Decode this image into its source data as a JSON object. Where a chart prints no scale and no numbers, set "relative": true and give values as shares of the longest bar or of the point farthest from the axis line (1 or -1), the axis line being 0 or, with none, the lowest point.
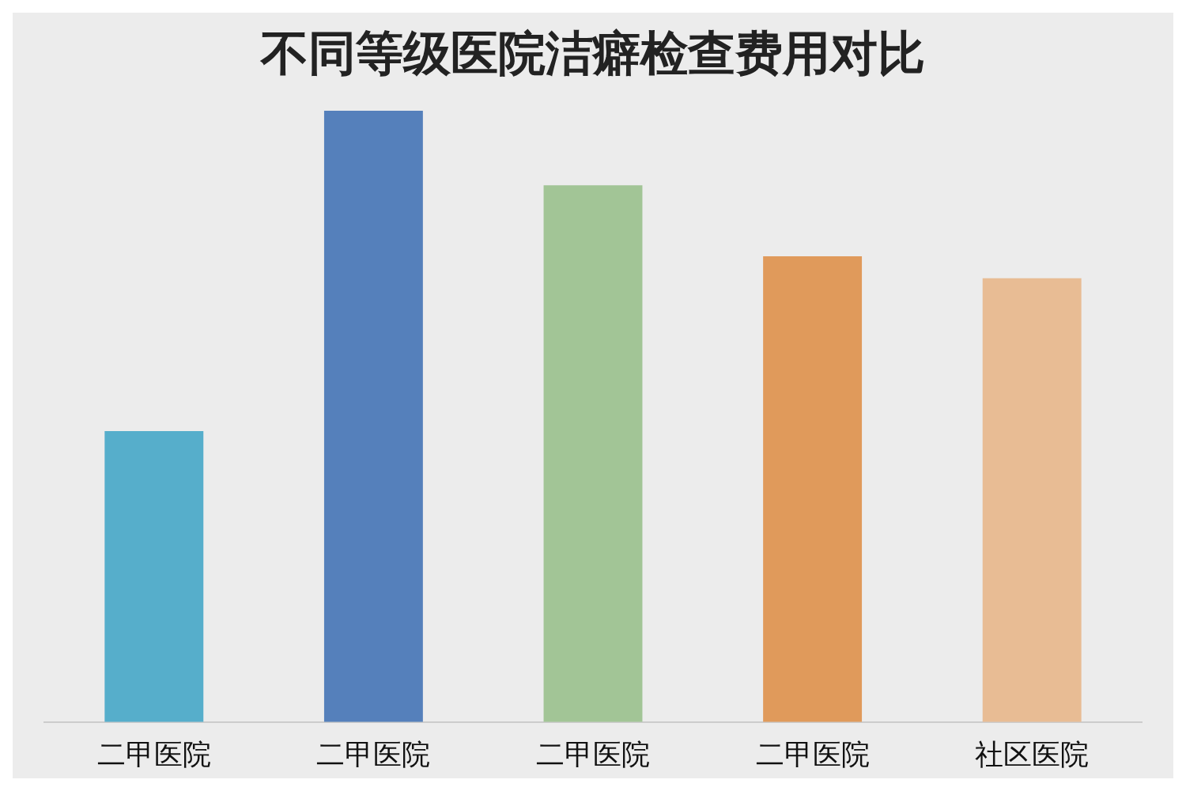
{
  "chart_data": {
    "type": "bar",
    "title": "不同等级医院洁癖检查费用对比",
    "categories": [
      "二甲医院",
      "二甲医院",
      "二甲医院",
      "二甲医院",
      "社区医院"
    ],
    "values": [
      0.476,
      1,
      0.878,
      0.762,
      0.726
    ],
    "colors": [
      "#56aecb",
      "#5580bb",
      "#a2c596",
      "#e09a5b",
      "#e8bc94"
    ],
    "relative": true
  }
}
